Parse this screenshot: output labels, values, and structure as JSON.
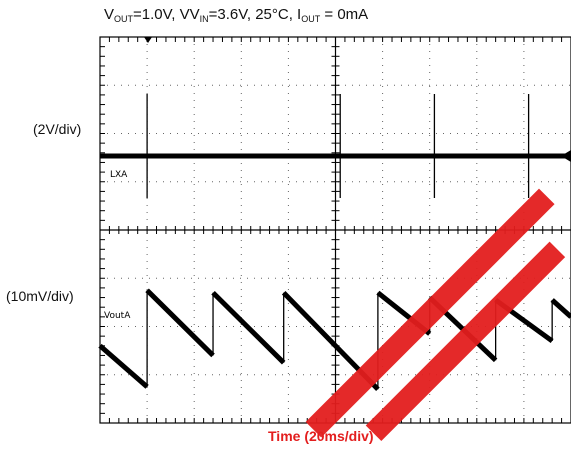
{
  "chart_data": {
    "type": "line",
    "title": "V_OUT=1.0V, V_IN=3.6V, 25°C, I_OUT = 0mA",
    "title_parts": {
      "v": "V",
      "out": "OUT",
      "eq1": "=1.0V, V",
      "in": "IN",
      "mid": "=3.6V, 25°C, I",
      "iout": "OUT",
      "end": " = 0mA"
    },
    "xlabel": "Time (20ms/div)",
    "grid": true,
    "divisions": {
      "x": 10,
      "y": 8
    },
    "channels": [
      {
        "name": "LXA",
        "scale_label": "(2V/div)",
        "kind": "switching",
        "pulse_times_div": [
          1.0,
          5.1,
          7.1,
          9.1
        ]
      },
      {
        "name": "VoutA",
        "scale_label": "(10mV/div)",
        "kind": "ripple",
        "ramp_points_div": [
          [
            0.0,
            -0.4
          ],
          [
            1.0,
            -1.25
          ],
          [
            1.0,
            0.75
          ],
          [
            2.4,
            -0.6
          ],
          [
            2.4,
            0.7
          ],
          [
            3.9,
            -0.75
          ],
          [
            3.9,
            0.7
          ],
          [
            5.9,
            -1.3
          ],
          [
            5.9,
            0.7
          ],
          [
            7.0,
            -0.15
          ],
          [
            7.0,
            0.6
          ],
          [
            8.4,
            -0.7
          ],
          [
            8.4,
            0.55
          ],
          [
            9.6,
            -0.3
          ],
          [
            9.6,
            0.55
          ],
          [
            10.0,
            0.2
          ]
        ]
      }
    ]
  }
}
